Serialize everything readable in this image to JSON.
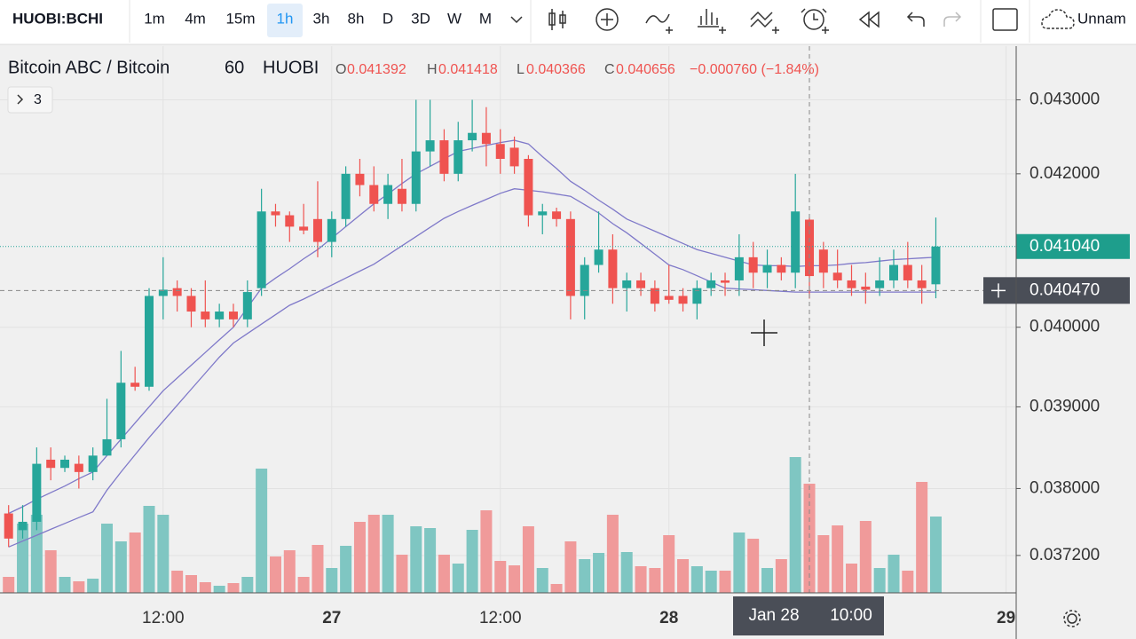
{
  "toolbar": {
    "symbol": "HUOBI:BCHI",
    "intervals": [
      "1m",
      "4m",
      "15m",
      "1h",
      "3h",
      "8h",
      "D",
      "3D",
      "W",
      "M"
    ],
    "layout_name": "Unnam"
  },
  "chart_data": {
    "type": "candlestick",
    "title": "Bitcoin ABC / Bitcoin",
    "interval": "60",
    "exchange": "HUOBI",
    "ohlc_labels": [
      "O",
      "H",
      "L",
      "C"
    ],
    "change": "−0.000760 (−1.84%)",
    "indicators_count": "3",
    "log_scale": true,
    "grid": true,
    "up_color": "#26a69a",
    "down_color": "#ef5350",
    "ylim": [
      0.03676,
      0.04374
    ],
    "yticks": [
      {
        "value": 0.043,
        "label": "0.043000"
      },
      {
        "value": 0.042,
        "label": "0.042000"
      },
      {
        "value": 0.04,
        "label": "0.040000"
      },
      {
        "value": 0.039,
        "label": "0.039000"
      },
      {
        "value": 0.038,
        "label": "0.038000"
      },
      {
        "value": 0.0372,
        "label": "0.037200"
      }
    ],
    "last_price": {
      "value": 0.04104,
      "label": "0.041040"
    },
    "crosshair_price": {
      "value": 0.04047,
      "label": "0.040470"
    },
    "crosshair_time": [
      "Jan 28",
      "10:00"
    ],
    "categories": [
      null,
      null,
      null,
      null,
      null,
      null,
      null,
      null,
      null,
      null,
      null,
      "12:00",
      null,
      null,
      null,
      null,
      null,
      null,
      null,
      null,
      null,
      null,
      null,
      "27",
      null,
      null,
      null,
      null,
      null,
      null,
      null,
      null,
      null,
      null,
      null,
      "12:00",
      null,
      null,
      null,
      null,
      null,
      null,
      null,
      null,
      null,
      null,
      null,
      "28",
      null,
      null,
      null,
      null,
      null,
      null,
      null,
      null,
      null,
      null,
      null,
      null,
      null,
      null,
      null,
      null,
      null,
      null,
      null,
      null,
      null,
      null,
      null,
      "29"
    ],
    "open": [
      0.0377,
      0.0375,
      0.0376,
      0.03835,
      0.03825,
      0.0383,
      0.0382,
      0.0384,
      0.0386,
      0.0393,
      0.03925,
      0.0404,
      0.0405,
      0.0404,
      0.0402,
      0.0401,
      0.0402,
      0.0401,
      0.0405,
      0.0415,
      0.04145,
      0.0413,
      0.0414,
      0.0411,
      0.0414,
      0.042,
      0.04185,
      0.0416,
      0.0418,
      0.0416,
      0.0423,
      0.04245,
      0.042,
      0.04245,
      0.04255,
      0.0424,
      0.04235,
      0.0422,
      0.04145,
      0.0415,
      0.0414,
      0.0404,
      0.0408,
      0.041,
      0.0405,
      0.0406,
      0.0405,
      0.0404,
      0.0404,
      0.0403,
      0.0405,
      0.0406,
      0.0406,
      0.0409,
      0.0407,
      0.0408,
      0.0407,
      0.041392,
      0.041,
      0.0407,
      0.0406,
      0.04052,
      0.0405,
      0.0406,
      0.0408,
      0.0406,
      0.04055,
      null,
      null,
      null,
      null,
      null
    ],
    "high": [
      0.0378,
      0.0378,
      0.0385,
      0.0385,
      0.0384,
      0.0384,
      0.0385,
      0.0391,
      0.0397,
      0.0395,
      0.0405,
      0.0409,
      0.0406,
      0.0405,
      0.0406,
      0.0403,
      0.0403,
      0.0406,
      0.0418,
      0.0416,
      0.0415,
      0.0416,
      0.0419,
      0.0415,
      0.0421,
      0.0422,
      0.0421,
      0.042,
      0.0422,
      0.043,
      0.043,
      0.0426,
      0.0427,
      0.043,
      0.0429,
      0.0426,
      0.0425,
      0.04225,
      0.0416,
      0.04155,
      0.0415,
      0.0409,
      0.0415,
      0.0412,
      0.0407,
      0.0407,
      0.0406,
      0.0408,
      0.0405,
      0.0406,
      0.0407,
      0.0407,
      0.0412,
      0.0411,
      0.041,
      0.0409,
      0.042,
      0.041418,
      0.0411,
      0.041,
      0.0408,
      0.0407,
      0.0409,
      0.041,
      0.0411,
      0.0408,
      0.04142,
      null,
      null,
      null,
      null,
      null
    ],
    "low": [
      0.0373,
      0.0374,
      0.0375,
      0.0381,
      0.0382,
      0.038,
      0.0381,
      0.0384,
      0.0385,
      0.0392,
      0.0392,
      0.0401,
      0.0402,
      0.04,
      0.04,
      0.04,
      0.04,
      0.04,
      0.0404,
      0.0413,
      0.0411,
      0.0412,
      0.0409,
      0.0409,
      0.0413,
      0.0417,
      0.0415,
      0.0414,
      0.0415,
      0.0415,
      0.0421,
      0.0419,
      0.0419,
      0.0423,
      0.0421,
      0.042,
      0.042,
      0.0413,
      0.0412,
      0.0413,
      0.0401,
      0.0401,
      0.0407,
      0.0403,
      0.0402,
      0.0404,
      0.0402,
      0.0403,
      0.0402,
      0.0401,
      0.0404,
      0.0404,
      0.0404,
      0.0405,
      0.0405,
      0.0406,
      0.0405,
      0.040366,
      0.0405,
      0.0405,
      0.0404,
      0.0403,
      0.0404,
      0.0405,
      0.0405,
      0.0403,
      0.04037,
      null,
      null,
      null,
      null,
      null
    ],
    "close": [
      0.0374,
      0.0376,
      0.0383,
      0.03825,
      0.03835,
      0.0382,
      0.0384,
      0.0386,
      0.0393,
      0.03925,
      0.0404,
      0.04048,
      0.0404,
      0.0402,
      0.0401,
      0.0402,
      0.0401,
      0.04045,
      0.0415,
      0.04145,
      0.0413,
      0.04125,
      0.0411,
      0.0414,
      0.042,
      0.04185,
      0.0416,
      0.04185,
      0.0416,
      0.0423,
      0.04245,
      0.042,
      0.04245,
      0.04255,
      0.0424,
      0.0422,
      0.0421,
      0.04145,
      0.0415,
      0.0414,
      0.0404,
      0.0408,
      0.041,
      0.0405,
      0.0406,
      0.0405,
      0.0403,
      0.04035,
      0.0403,
      0.0405,
      0.0406,
      0.04057,
      0.0409,
      0.0407,
      0.0408,
      0.0407,
      0.0415,
      0.040656,
      0.0407,
      0.0406,
      0.0405,
      0.04048,
      0.0406,
      0.0408,
      0.0406,
      0.0405,
      0.04104,
      null,
      null,
      null,
      null,
      null
    ],
    "volume": {
      "ylim": [
        0,
        616
      ],
      "up_color": "#7fc6c2",
      "down_color": "#f09a9a",
      "values": [
        18,
        78,
        88,
        48,
        18,
        13,
        16,
        78,
        58,
        68,
        98,
        88,
        25,
        20,
        12,
        8,
        11,
        18,
        140,
        41,
        48,
        18,
        54,
        28,
        53,
        80,
        88,
        88,
        43,
        75,
        73,
        43,
        33,
        71,
        93,
        36,
        31,
        75,
        28,
        10,
        58,
        38,
        45,
        88,
        46,
        30,
        28,
        65,
        38,
        30,
        25,
        25,
        68,
        61,
        28,
        38,
        153,
        123,
        65,
        76,
        33,
        81,
        28,
        43,
        25,
        125,
        86,
        null,
        null,
        null,
        null,
        null
      ]
    },
    "ma_lines": [
      {
        "color": "#7f79c9",
        "values": [
          0.0377,
          0.03778,
          0.03787,
          0.03795,
          0.03803,
          0.03812,
          0.0382,
          0.0384,
          0.0386,
          0.0388,
          0.039,
          0.0392,
          0.03936,
          0.03952,
          0.03968,
          0.03984,
          0.04,
          0.04025,
          0.0405,
          0.04063,
          0.04075,
          0.04088,
          0.041,
          0.04115,
          0.0413,
          0.04145,
          0.0416,
          0.04173,
          0.04187,
          0.042,
          0.0421,
          0.0422,
          0.0423,
          0.04234,
          0.04238,
          0.04242,
          0.04245,
          0.0424,
          0.04223,
          0.04207,
          0.0419,
          0.04178,
          0.04165,
          0.04153,
          0.0414,
          0.04132,
          0.04124,
          0.04116,
          0.04108,
          0.041,
          0.04095,
          0.0409,
          0.04085,
          0.0408,
          0.04079,
          0.04079,
          0.04078,
          0.04079,
          0.04079,
          0.0408,
          0.04082,
          0.04083,
          0.04085,
          0.04087,
          0.04088,
          0.04089,
          0.0409,
          null,
          null,
          null,
          null,
          null
        ]
      },
      {
        "color": "#7f79c9",
        "values": [
          0.0373,
          0.03737,
          0.03744,
          0.03751,
          0.03758,
          0.03765,
          0.03772,
          0.03798,
          0.0382,
          0.03841,
          0.03862,
          0.03882,
          0.03902,
          0.03922,
          0.03942,
          0.03962,
          0.0398,
          0.03992,
          0.04004,
          0.04016,
          0.04028,
          0.04036,
          0.04045,
          0.04054,
          0.04063,
          0.04072,
          0.04081,
          0.04093,
          0.04105,
          0.04117,
          0.04129,
          0.04141,
          0.0415,
          0.04158,
          0.04166,
          0.04174,
          0.0418,
          0.04178,
          0.04176,
          0.04173,
          0.0417,
          0.04159,
          0.04148,
          0.04134,
          0.04122,
          0.04108,
          0.04094,
          0.0408,
          0.04074,
          0.04066,
          0.04058,
          0.0405,
          0.04049,
          0.04048,
          0.04047,
          0.04046,
          0.04045,
          0.04045,
          0.04045,
          0.04045,
          0.04045,
          0.04045,
          0.04045,
          0.04045,
          0.04045,
          0.04045,
          0.04045,
          null,
          null,
          null,
          null,
          null
        ]
      }
    ]
  }
}
